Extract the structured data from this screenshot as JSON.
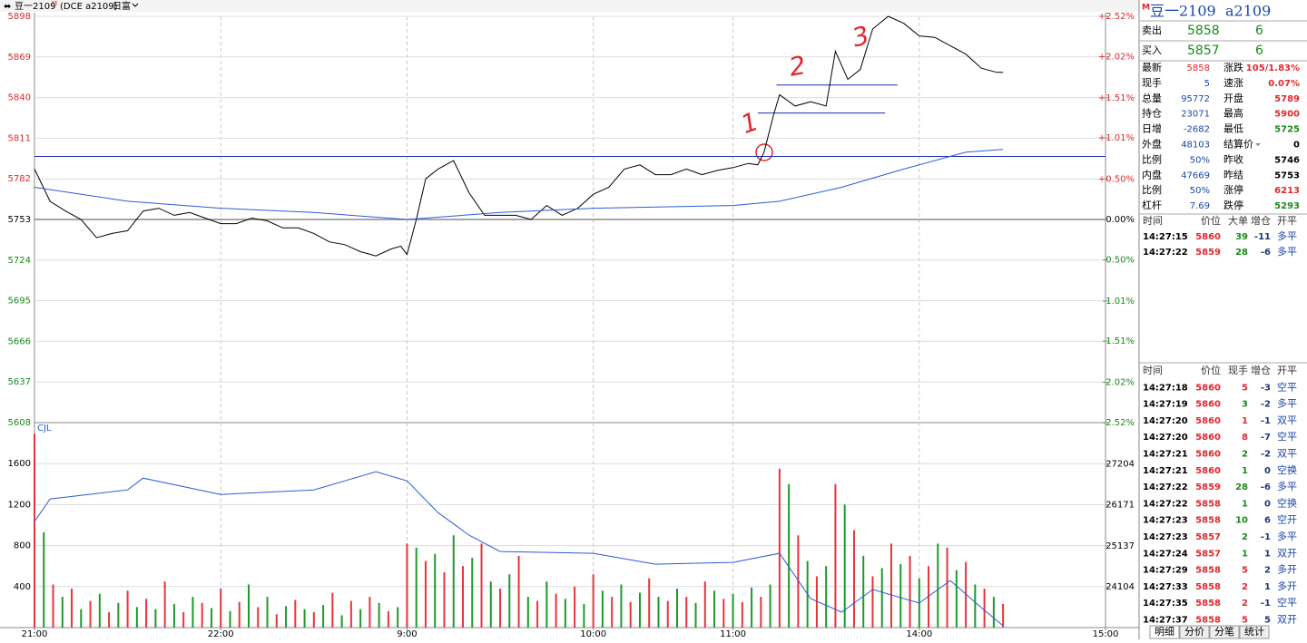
{
  "toolbar": {
    "title": "豆一2109",
    "badge": "M",
    "code": "(DCE a2109)",
    "menu": "日富"
  },
  "chart_data": [
    {
      "type": "line",
      "ylim": [
        5608,
        5898
      ],
      "yticks": [
        5898,
        5869,
        5840,
        5811,
        5782,
        5753,
        5724,
        5695,
        5666,
        5637,
        5608
      ],
      "y2lim": [
        -2.52,
        2.52
      ],
      "y2ticks": [
        {
          "value": 2.52,
          "label": "+2.52%"
        },
        {
          "value": 2.02,
          "label": "+2.02%"
        },
        {
          "value": 1.51,
          "label": "+1.51%"
        },
        {
          "value": 1.01,
          "label": "+1.01%"
        },
        {
          "value": 0.5,
          "label": "+0.50%"
        },
        {
          "value": 0,
          "label": "0.00%"
        },
        {
          "value": -0.5,
          "label": "-0.50%"
        },
        {
          "value": -1.01,
          "label": "-1.01%"
        },
        {
          "value": -1.51,
          "label": "-1.51%"
        },
        {
          "value": -2.02,
          "label": "-2.02%"
        },
        {
          "value": -2.52,
          "label": "-2.52%"
        }
      ],
      "xlim": [
        0,
        345
      ],
      "grid": true,
      "series": [
        {
          "color": "#000000",
          "x": [
            0,
            5,
            10,
            15,
            20,
            25,
            30,
            35,
            40,
            45,
            50,
            55,
            60,
            65,
            70,
            75,
            80,
            85,
            90,
            95,
            100,
            105,
            110,
            115,
            118,
            120,
            123,
            126,
            130,
            135,
            140,
            145,
            150,
            155,
            160,
            165,
            170,
            175,
            180,
            185,
            190,
            195,
            200,
            205,
            210,
            215,
            220,
            225,
            230,
            233,
            235,
            238,
            240,
            245,
            250,
            255,
            258,
            262,
            266,
            270,
            275,
            280,
            285,
            290,
            295,
            300,
            305,
            310,
            312
          ],
          "values": [
            5789,
            5766,
            5759,
            5753,
            5740,
            5743,
            5745,
            5759,
            5761,
            5756,
            5758,
            5754,
            5750,
            5750,
            5754,
            5752,
            5747,
            5747,
            5743,
            5737,
            5735,
            5730,
            5727,
            5732,
            5734,
            5728,
            5753,
            5782,
            5789,
            5795,
            5772,
            5756,
            5756,
            5756,
            5753,
            5763,
            5756,
            5761,
            5771,
            5776,
            5789,
            5792,
            5785,
            5785,
            5789,
            5785,
            5788,
            5790,
            5793,
            5792,
            5801,
            5827,
            5842,
            5834,
            5837,
            5834,
            5873,
            5853,
            5860,
            5889,
            5898,
            5893,
            5884,
            5883,
            5877,
            5871,
            5861,
            5858,
            5858
          ]
        },
        {
          "color": "#2a5bd7",
          "x": [
            0,
            30,
            60,
            90,
            120,
            150,
            180,
            225,
            240,
            260,
            280,
            300,
            312
          ],
          "values": [
            5776,
            5766,
            5761,
            5758,
            5753,
            5758,
            5761,
            5763,
            5766,
            5776,
            5789,
            5801,
            5803
          ]
        }
      ],
      "levels": [
        {
          "value": 5798,
          "x": [
            0,
            345
          ]
        },
        {
          "value": 5849,
          "x": [
            239,
            278
          ]
        },
        {
          "value": 5829,
          "x": [
            233,
            274
          ]
        }
      ],
      "level_color": "#1c2fb8",
      "annotations": [
        "1",
        "2",
        "3"
      ]
    },
    {
      "type": "bar",
      "label": "CJL",
      "ylim": [
        0,
        2000
      ],
      "yticks": [
        400,
        800,
        1200,
        1600
      ],
      "y2lim": [
        23078,
        28238
      ],
      "y2ticks": [
        24104,
        25137,
        26171,
        27204
      ],
      "xlim": [
        0,
        345
      ],
      "xticks": [
        {
          "value": 0,
          "label": "21:00"
        },
        {
          "value": 60,
          "label": "22:00"
        },
        {
          "value": 120,
          "label": "9:00"
        },
        {
          "value": 180,
          "label": "10:00"
        },
        {
          "value": 225,
          "label": "11:00"
        },
        {
          "value": 285,
          "label": "14:00"
        },
        {
          "value": 345,
          "label": "15:00"
        }
      ],
      "series": [
        {
          "color": "#e8333a",
          "x": [
            0,
            6,
            12,
            18,
            24,
            30,
            36,
            42,
            48,
            54,
            60,
            66,
            72,
            78,
            84,
            90,
            96,
            102,
            108,
            114,
            120,
            126,
            132,
            138,
            144,
            150,
            156,
            162,
            168,
            174,
            180,
            186,
            192,
            198,
            204,
            210,
            216,
            222,
            228,
            234,
            240,
            246,
            252,
            258,
            264,
            270,
            276,
            282,
            288,
            294,
            300,
            306,
            312
          ],
          "values": [
            1890,
            420,
            380,
            260,
            150,
            360,
            280,
            450,
            150,
            240,
            380,
            250,
            200,
            130,
            270,
            150,
            340,
            260,
            300,
            160,
            820,
            650,
            540,
            600,
            820,
            380,
            700,
            260,
            330,
            400,
            520,
            300,
            250,
            480,
            260,
            300,
            450,
            280,
            250,
            300,
            1550,
            900,
            500,
            1400,
            950,
            500,
            820,
            700,
            600,
            780,
            640,
            380,
            230
          ]
        },
        {
          "color": "#1d9a2a",
          "x": [
            3,
            9,
            15,
            21,
            27,
            33,
            39,
            45,
            51,
            57,
            63,
            69,
            75,
            81,
            87,
            93,
            99,
            105,
            111,
            117,
            123,
            129,
            135,
            141,
            147,
            153,
            159,
            165,
            171,
            177,
            183,
            189,
            195,
            201,
            207,
            213,
            219,
            225,
            231,
            237,
            243,
            249,
            255,
            261,
            267,
            273,
            279,
            285,
            291,
            297,
            303,
            309
          ],
          "values": [
            930,
            300,
            180,
            330,
            240,
            200,
            180,
            230,
            300,
            190,
            160,
            420,
            300,
            210,
            180,
            220,
            120,
            180,
            240,
            200,
            780,
            720,
            900,
            680,
            450,
            520,
            300,
            450,
            280,
            230,
            360,
            420,
            340,
            300,
            380,
            240,
            360,
            330,
            390,
            420,
            1400,
            650,
            600,
            1200,
            700,
            580,
            620,
            480,
            820,
            560,
            420,
            300
          ]
        },
        {
          "type": "line",
          "axis": "y2",
          "color": "#2a5bd7",
          "x": [
            0,
            5,
            30,
            35,
            60,
            90,
            110,
            120,
            130,
            140,
            150,
            180,
            200,
            225,
            240,
            250,
            260,
            270,
            285,
            295,
            305,
            312
          ],
          "values": [
            25746,
            26316,
            26544,
            26840,
            26430,
            26544,
            27000,
            26772,
            25974,
            25404,
            24993,
            24947,
            24674,
            24719,
            24947,
            23808,
            23466,
            24036,
            23694,
            24264,
            23580,
            23124
          ]
        }
      ]
    }
  ],
  "quote": {
    "badge": "M",
    "name": "豆一2109",
    "code": "a2109",
    "ask_label": "卖出",
    "ask": "5858",
    "ask_vol": "6",
    "bid_label": "买入",
    "bid": "5857",
    "bid_vol": "6"
  },
  "stats": [
    {
      "l1": "最新",
      "v1": "5858",
      "c1": "#e0282e",
      "l2": "涨跌",
      "v2": "105/1.83%",
      "c2": "#e0282e"
    },
    {
      "l1": "现手",
      "v1": "5",
      "c1": "#1a47a8",
      "l2": "速涨",
      "v2": "0.07%",
      "c2": "#e0282e"
    },
    {
      "l1": "总量",
      "v1": "95772",
      "c1": "#1a47a8",
      "l2": "开盘",
      "v2": "5789",
      "c2": "#e0282e"
    },
    {
      "l1": "持仓",
      "v1": "23071",
      "c1": "#1a47a8",
      "l2": "最高",
      "v2": "5900",
      "c2": "#e0282e"
    },
    {
      "l1": "日增",
      "v1": "-2682",
      "c1": "#1a47a8",
      "l2": "最低",
      "v2": "5725",
      "c2": "#1a8a1a"
    },
    {
      "l1": "外盘",
      "v1": "48103",
      "c1": "#1a47a8",
      "l2": "结算价",
      "v2": "0",
      "c2": "#000000"
    },
    {
      "l1": "比例",
      "v1": "50%",
      "c1": "#1a47a8",
      "l2": "昨收",
      "v2": "5746",
      "c2": "#000000"
    },
    {
      "l1": "内盘",
      "v1": "47669",
      "c1": "#1a47a8",
      "l2": "昨结",
      "v2": "5753",
      "c2": "#000000"
    },
    {
      "l1": "比例",
      "v1": "50%",
      "c1": "#1a47a8",
      "l2": "涨停",
      "v2": "6213",
      "c2": "#e0282e"
    },
    {
      "l1": "杠杆",
      "v1": "7.69",
      "c1": "#1a47a8",
      "l2": "跌停",
      "v2": "5293",
      "c2": "#1a8a1a"
    }
  ],
  "big_orders": {
    "header": [
      "时间",
      "价位",
      "大单",
      "增仓",
      "开平"
    ],
    "rows": [
      [
        "14:27:15",
        "5860",
        "39",
        "-11",
        "多平"
      ],
      [
        "14:27:22",
        "5859",
        "28",
        "-6",
        "多平"
      ]
    ],
    "qty_colors": [
      "#1a8a1a",
      "#1a8a1a"
    ]
  },
  "ticks": {
    "header": [
      "时间",
      "价位",
      "现手",
      "增仓",
      "开平"
    ],
    "rows": [
      [
        "14:27:18",
        "5860",
        "5",
        "-3",
        "空平"
      ],
      [
        "14:27:19",
        "5860",
        "3",
        "-2",
        "多平"
      ],
      [
        "14:27:20",
        "5860",
        "1",
        "-1",
        "双平"
      ],
      [
        "14:27:20",
        "5860",
        "8",
        "-7",
        "空平"
      ],
      [
        "14:27:21",
        "5860",
        "2",
        "-2",
        "双平"
      ],
      [
        "14:27:21",
        "5860",
        "1",
        "0",
        "空换"
      ],
      [
        "14:27:22",
        "5859",
        "28",
        "-6",
        "多平"
      ],
      [
        "14:27:22",
        "5858",
        "1",
        "0",
        "空换"
      ],
      [
        "14:27:23",
        "5858",
        "10",
        "6",
        "空开"
      ],
      [
        "14:27:23",
        "5857",
        "2",
        "-1",
        "多平"
      ],
      [
        "14:27:24",
        "5857",
        "1",
        "1",
        "双开"
      ],
      [
        "14:27:29",
        "5858",
        "5",
        "2",
        "多开"
      ],
      [
        "14:27:33",
        "5858",
        "2",
        "1",
        "多开"
      ],
      [
        "14:27:35",
        "5858",
        "2",
        "-1",
        "空平"
      ],
      [
        "14:27:37",
        "5858",
        "5",
        "5",
        "双开"
      ]
    ],
    "qty_colors": [
      "#e0282e",
      "#1a8a1a",
      "#e0282e",
      "#e0282e",
      "#1a8a1a",
      "#1a8a1a",
      "#1a8a1a",
      "#1a8a1a",
      "#1a8a1a",
      "#1a8a1a",
      "#1a8a1a",
      "#e0282e",
      "#e0282e",
      "#e0282e",
      "#e0282e"
    ]
  },
  "tabs": [
    "明细",
    "分价",
    "分笔",
    "统计"
  ]
}
